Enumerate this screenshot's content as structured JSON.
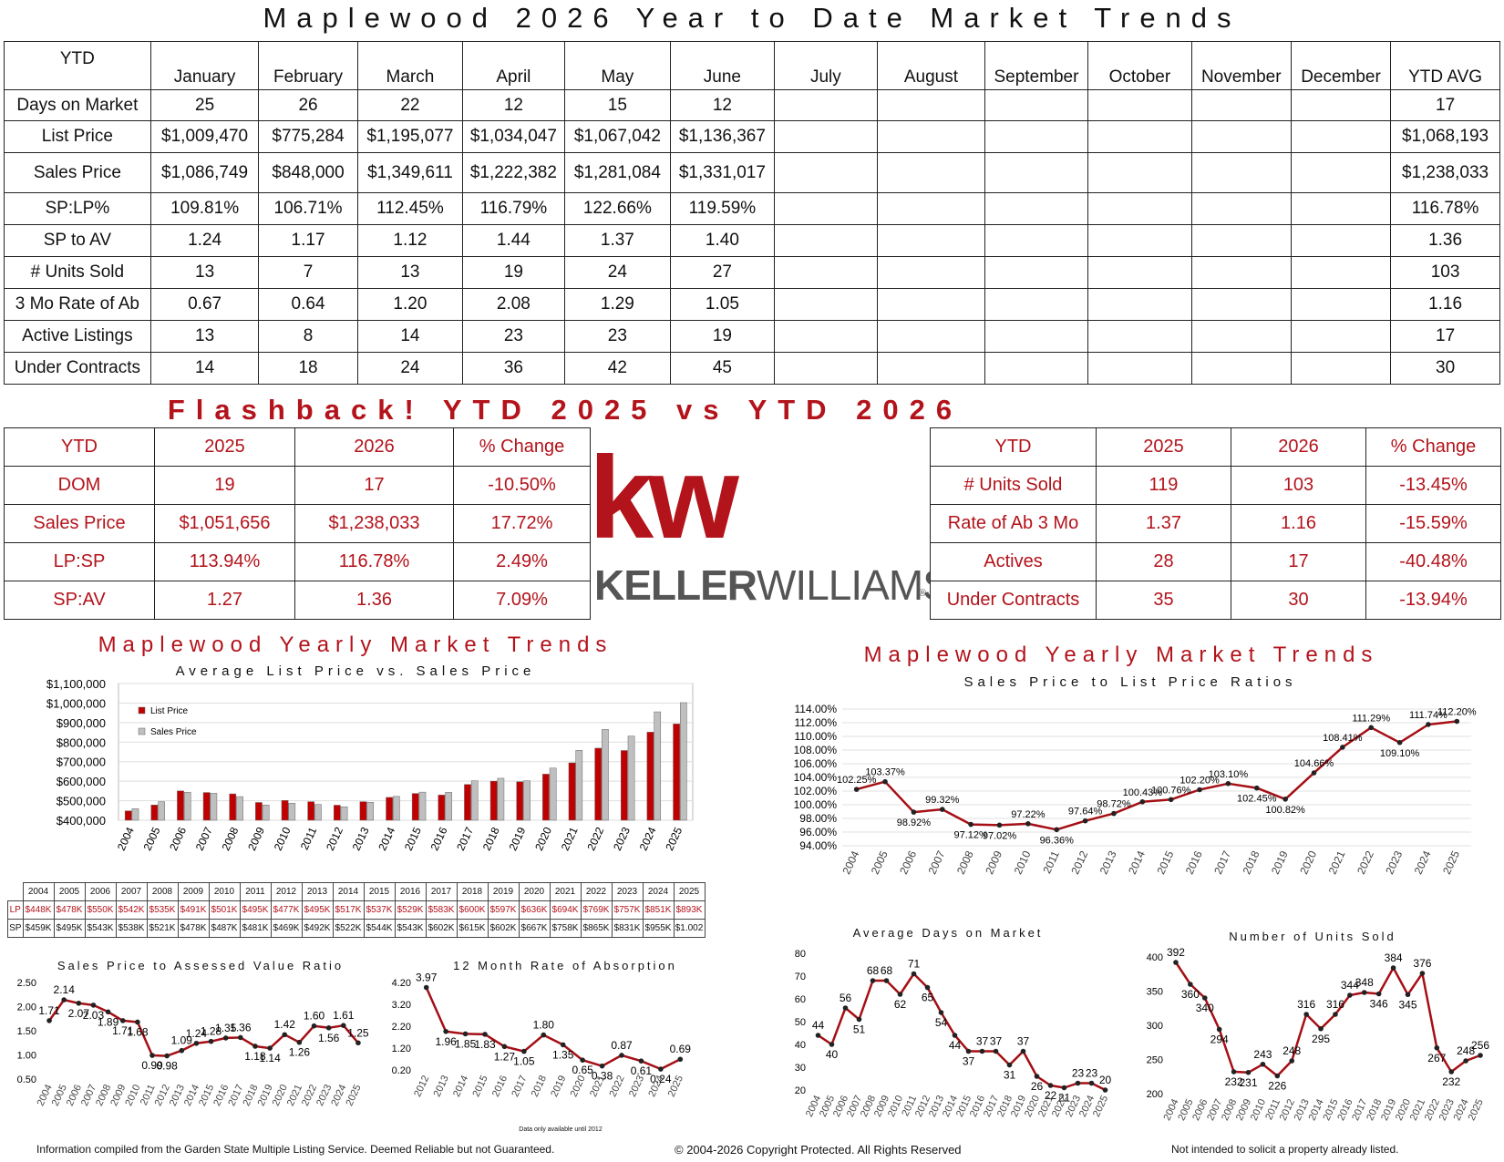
{
  "title": "Maplewood 2026 Year to Date Market Trends",
  "ytd_table": {
    "corner": "YTD",
    "months": [
      "January",
      "February",
      "March",
      "April",
      "May",
      "June",
      "July",
      "August",
      "September",
      "October",
      "November",
      "December"
    ],
    "avg_header": "YTD AVG",
    "rows": [
      {
        "label": "Days on Market",
        "values": [
          "25",
          "26",
          "22",
          "12",
          "15",
          "12",
          "",
          "",
          "",
          "",
          "",
          ""
        ],
        "avg": "17"
      },
      {
        "label": "List Price",
        "values": [
          "$1,009,470",
          "$775,284",
          "$1,195,077",
          "$1,034,047",
          "$1,067,042",
          "$1,136,367",
          "",
          "",
          "",
          "",
          "",
          ""
        ],
        "avg": "$1,068,193"
      },
      {
        "label": "Sales Price",
        "values": [
          "$1,086,749",
          "$848,000",
          "$1,349,611",
          "$1,222,382",
          "$1,281,084",
          "$1,331,017",
          "",
          "",
          "",
          "",
          "",
          ""
        ],
        "avg": "$1,238,033"
      },
      {
        "label": "SP:LP%",
        "values": [
          "109.81%",
          "106.71%",
          "112.45%",
          "116.79%",
          "122.66%",
          "119.59%",
          "",
          "",
          "",
          "",
          "",
          ""
        ],
        "avg": "116.78%"
      },
      {
        "label": "SP to AV",
        "values": [
          "1.24",
          "1.17",
          "1.12",
          "1.44",
          "1.37",
          "1.40",
          "",
          "",
          "",
          "",
          "",
          ""
        ],
        "avg": "1.36"
      },
      {
        "label": "# Units Sold",
        "values": [
          "13",
          "7",
          "13",
          "19",
          "24",
          "27",
          "",
          "",
          "",
          "",
          "",
          ""
        ],
        "avg": "103"
      },
      {
        "label": "3 Mo Rate of Ab",
        "values": [
          "0.67",
          "0.64",
          "1.20",
          "2.08",
          "1.29",
          "1.05",
          "",
          "",
          "",
          "",
          "",
          ""
        ],
        "avg": "1.16"
      },
      {
        "label": "Active Listings",
        "values": [
          "13",
          "8",
          "14",
          "23",
          "23",
          "19",
          "",
          "",
          "",
          "",
          "",
          ""
        ],
        "avg": "17"
      },
      {
        "label": "Under Contracts",
        "values": [
          "14",
          "18",
          "24",
          "36",
          "42",
          "45",
          "",
          "",
          "",
          "",
          "",
          ""
        ],
        "avg": "30"
      }
    ]
  },
  "flashback": {
    "title": "Flashback! YTD 2025 vs YTD 2026",
    "left": {
      "headers": [
        "YTD",
        "2025",
        "2026",
        "% Change"
      ],
      "rows": [
        [
          "DOM",
          "19",
          "17",
          "-10.50%"
        ],
        [
          "Sales Price",
          "$1,051,656",
          "$1,238,033",
          "17.72%"
        ],
        [
          "LP:SP",
          "113.94%",
          "116.78%",
          "2.49%"
        ],
        [
          "SP:AV",
          "1.27",
          "1.36",
          "7.09%"
        ]
      ]
    },
    "right": {
      "headers": [
        "YTD",
        "2025",
        "2026",
        "% Change"
      ],
      "rows": [
        [
          "# Units Sold",
          "119",
          "103",
          "-13.45%"
        ],
        [
          "Rate of Ab 3 Mo",
          "1.37",
          "1.16",
          "-15.59%"
        ],
        [
          "Actives",
          "28",
          "17",
          "-40.48%"
        ],
        [
          "Under Contracts",
          "35",
          "30",
          "-13.94%"
        ]
      ]
    }
  },
  "logo": {
    "mark": "kw",
    "wordmark_bold": "KELLER",
    "wordmark_light": "WILLIAMS",
    "registered": "®"
  },
  "section_title": "Maplewood Yearly Market Trends",
  "lp_sp_table": {
    "row_labels": [
      "LP",
      "SP"
    ],
    "years": [
      "2004",
      "2005",
      "2006",
      "2007",
      "2008",
      "2009",
      "2010",
      "2011",
      "2012",
      "2013",
      "2014",
      "2015",
      "2016",
      "2017",
      "2018",
      "2019",
      "2020",
      "2021",
      "2022",
      "2023",
      "2024",
      "2025"
    ],
    "lp": [
      "$448K",
      "$478K",
      "$550K",
      "$542K",
      "$535K",
      "$491K",
      "$501K",
      "$495K",
      "$477K",
      "$495K",
      "$517K",
      "$537K",
      "$529K",
      "$583K",
      "$600K",
      "$597K",
      "$636K",
      "$694K",
      "$769K",
      "$757K",
      "$851K",
      "$893K"
    ],
    "sp": [
      "$459K",
      "$495K",
      "$543K",
      "$538K",
      "$521K",
      "$478K",
      "$487K",
      "$481K",
      "$469K",
      "$492K",
      "$522K",
      "$544K",
      "$543K",
      "$602K",
      "$615K",
      "$602K",
      "$667K",
      "$758K",
      "$865K",
      "$831K",
      "$955K",
      "$1.002"
    ]
  },
  "chart_data": [
    {
      "type": "bar",
      "title": "Average List Price vs. Sales Price",
      "categories": [
        "2004",
        "2005",
        "2006",
        "2007",
        "2008",
        "2009",
        "2010",
        "2011",
        "2012",
        "2013",
        "2014",
        "2015",
        "2016",
        "2017",
        "2018",
        "2019",
        "2020",
        "2021",
        "2022",
        "2023",
        "2024",
        "2025"
      ],
      "series": [
        {
          "name": "List Price",
          "color": "#c00000",
          "values": [
            448,
            478,
            550,
            542,
            535,
            491,
            501,
            495,
            477,
            495,
            517,
            537,
            529,
            583,
            600,
            597,
            636,
            694,
            769,
            757,
            851,
            893
          ]
        },
        {
          "name": "Sales Price",
          "color": "#bfbfbf",
          "values": [
            459,
            495,
            543,
            538,
            521,
            478,
            487,
            481,
            469,
            492,
            522,
            544,
            543,
            602,
            615,
            602,
            667,
            758,
            865,
            831,
            955,
            1002
          ]
        }
      ],
      "y_unit": "thousands USD",
      "ylim": [
        400,
        1100
      ],
      "yticks": [
        "$400,000",
        "$500,000",
        "$600,000",
        "$700,000",
        "$800,000",
        "$900,000",
        "$1,000,000",
        "$1,100,000"
      ],
      "legend_position": "top-left"
    },
    {
      "type": "line",
      "title": "Sales Price to List Price Ratios",
      "x": [
        "2004",
        "2005",
        "2006",
        "2007",
        "2008",
        "2009",
        "2010",
        "2011",
        "2012",
        "2013",
        "2014",
        "2015",
        "2016",
        "2017",
        "2018",
        "2019",
        "2020",
        "2021",
        "2022",
        "2023",
        "2024",
        "2025"
      ],
      "values": [
        102.25,
        103.37,
        98.92,
        99.32,
        97.12,
        97.02,
        97.22,
        96.36,
        97.64,
        98.72,
        100.43,
        100.76,
        102.2,
        103.1,
        102.45,
        100.82,
        104.66,
        108.41,
        111.29,
        109.1,
        111.74,
        112.2
      ],
      "labels": [
        "102.25%",
        "103.37%",
        "98.92%",
        "99.32%",
        "97.12%",
        "97.02%",
        "97.22%",
        "96.36%",
        "97.64%",
        "98.72%",
        "100.43%",
        "100.76%",
        "102.20%",
        "103.10%",
        "102.45%",
        "100.82%",
        "104.66%",
        "108.41%",
        "111.29%",
        "109.10%",
        "111.74%",
        "112.20%"
      ],
      "ylim": [
        94,
        114
      ],
      "yticks": [
        "94.00%",
        "96.00%",
        "98.00%",
        "100.00%",
        "102.00%",
        "104.00%",
        "106.00%",
        "108.00%",
        "110.00%",
        "112.00%",
        "114.00%"
      ]
    },
    {
      "type": "line",
      "title": "Sales Price to Assessed Value Ratio",
      "x": [
        "2004",
        "2005",
        "2006",
        "2007",
        "2008",
        "2009",
        "2010",
        "2011",
        "2012",
        "2013",
        "2014",
        "2015",
        "2016",
        "2017",
        "2018",
        "2019",
        "2020",
        "2021",
        "2022",
        "2023",
        "2024",
        "2025"
      ],
      "values": [
        1.71,
        2.14,
        2.07,
        2.03,
        1.89,
        1.71,
        1.68,
        0.99,
        0.98,
        1.09,
        1.24,
        1.28,
        1.35,
        1.36,
        1.18,
        1.14,
        1.42,
        1.26,
        1.6,
        1.56,
        1.61,
        1.25
      ],
      "labels": [
        "1.71",
        "2.14",
        "2.07",
        "2.03",
        "1.89",
        "1.71",
        "1.68",
        "0.99",
        "0.98",
        "1.09",
        "1.24",
        "1.28",
        "1.35",
        "1.36",
        "1.18",
        "1.14",
        "1.42",
        "1.26",
        "1.60",
        "1.56",
        "1.61",
        "1.25"
      ],
      "ylim": [
        0.5,
        2.5
      ],
      "yticks": [
        "0.50",
        "1.00",
        "1.50",
        "2.00",
        "2.50"
      ]
    },
    {
      "type": "line",
      "title": "12 Month Rate of Absorption",
      "x": [
        "2012",
        "2013",
        "2014",
        "2015",
        "2016",
        "2017",
        "2018",
        "2019",
        "2020",
        "2021",
        "2022",
        "2023",
        "2024",
        "2025"
      ],
      "values": [
        3.97,
        1.96,
        1.85,
        1.83,
        1.27,
        1.05,
        1.8,
        1.35,
        0.65,
        0.38,
        0.87,
        0.61,
        0.24,
        0.69
      ],
      "labels": [
        "3.97",
        "1.96",
        "1.85",
        "1.83",
        "1.27",
        "1.05",
        "1.80",
        "1.35",
        "0.65",
        "0.38",
        "0.87",
        "0.61",
        "0.24",
        "0.69"
      ],
      "ylim": [
        0.2,
        4.2
      ],
      "yticks": [
        "0.20",
        "1.20",
        "2.20",
        "3.20",
        "4.20"
      ],
      "note": "Data only available until 2012"
    },
    {
      "type": "line",
      "title": "Average Days on Market",
      "x": [
        "2004",
        "2005",
        "2006",
        "2007",
        "2008",
        "2009",
        "2010",
        "2011",
        "2012",
        "2013",
        "2014",
        "2015",
        "2016",
        "2017",
        "2018",
        "2019",
        "2020",
        "2021",
        "2022",
        "2023",
        "2024",
        "2025"
      ],
      "values": [
        44,
        40,
        56,
        51,
        68,
        68,
        62,
        71,
        65,
        54,
        44,
        37,
        37,
        37,
        31,
        37,
        26,
        22,
        21,
        23,
        23,
        20
      ],
      "labels": [
        "44",
        "40",
        "56",
        "51",
        "68",
        "68",
        "62",
        "71",
        "65",
        "54",
        "44",
        "37",
        "37",
        "37",
        "31",
        "37",
        "26",
        "22",
        "21",
        "23",
        "23",
        "20"
      ],
      "ylim": [
        20,
        80
      ],
      "yticks": [
        "20",
        "30",
        "40",
        "50",
        "60",
        "70",
        "80"
      ]
    },
    {
      "type": "line",
      "title": "Number of Units Sold",
      "x": [
        "2004",
        "2005",
        "2006",
        "2007",
        "2008",
        "2009",
        "2010",
        "2011",
        "2012",
        "2013",
        "2014",
        "2015",
        "2016",
        "2017",
        "2018",
        "2019",
        "2020",
        "2021",
        "2022",
        "2023",
        "2024",
        "2025"
      ],
      "values": [
        392,
        360,
        340,
        294,
        232,
        231,
        243,
        226,
        248,
        316,
        295,
        316,
        344,
        348,
        346,
        384,
        345,
        376,
        267,
        232,
        248,
        256
      ],
      "labels": [
        "392",
        "360",
        "340",
        "294",
        "232",
        "231",
        "243",
        "226",
        "248",
        "316",
        "295",
        "316",
        "344",
        "348",
        "346",
        "384",
        "345",
        "376",
        "267",
        "232",
        "248",
        "256"
      ],
      "ylim": [
        200,
        400
      ],
      "yticks": [
        "200",
        "250",
        "300",
        "350",
        "400"
      ]
    }
  ],
  "footer": {
    "left": "Information compiled from the Garden State Multiple Listing Service.  Deemed Reliable but not Guaranteed.",
    "center": "© 2004-2026 Copyright Protected.  All Rights Reserved",
    "right": "Not intended to solicit a property already listed."
  }
}
